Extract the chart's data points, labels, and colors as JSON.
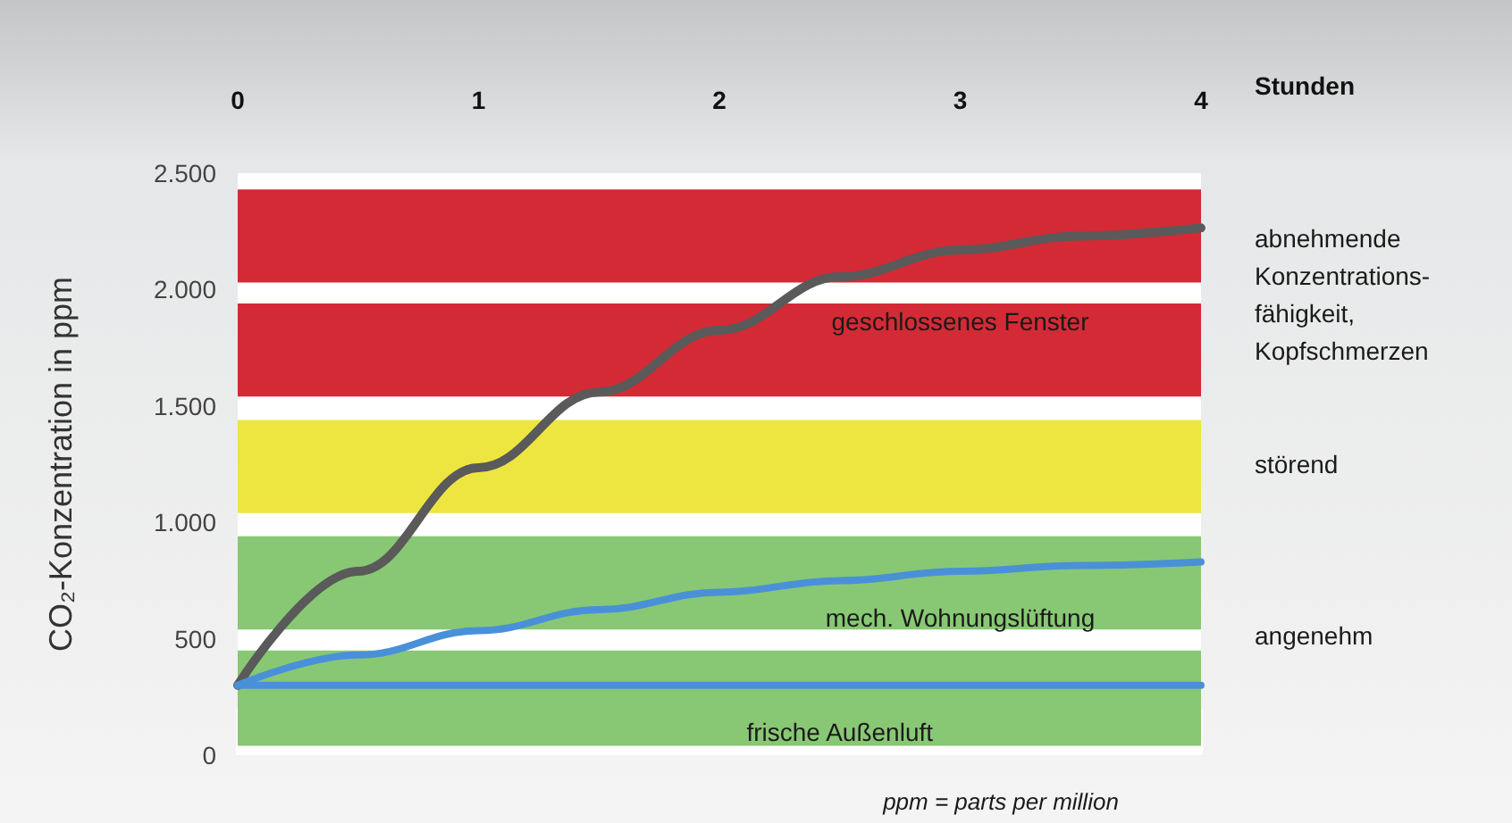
{
  "chart_data": {
    "type": "line",
    "xlabel": "Stunden",
    "ylabel": "CO₂-Konzentration in ppm",
    "x": [
      0,
      0.5,
      1,
      1.5,
      2,
      2.5,
      3,
      3.5,
      4
    ],
    "xlim": [
      0,
      4
    ],
    "xticks": [
      0,
      1,
      2,
      3,
      4
    ],
    "ylim": [
      0,
      2500
    ],
    "yticks": [
      0,
      500,
      {
        "value": 1000,
        "label": "1.000"
      },
      {
        "value": 1500,
        "label": "1.500"
      },
      {
        "value": 2000,
        "label": "2.000"
      },
      {
        "value": 2500,
        "label": "2.500"
      }
    ],
    "series": [
      {
        "name": "geschlossenes Fenster",
        "color": "#5a5a5a",
        "values": [
          300,
          790,
          1235,
          1560,
          1825,
          2055,
          2170,
          2230,
          2265
        ]
      },
      {
        "name": "mech. Wohnungslüftung",
        "color": "#4a90d8",
        "values": [
          300,
          430,
          535,
          625,
          700,
          750,
          790,
          815,
          830
        ]
      },
      {
        "name": "frische Außenluft",
        "color": "#4a90d8",
        "values": [
          300,
          300,
          300,
          300,
          300,
          300,
          300,
          300,
          300
        ]
      }
    ],
    "bands": [
      {
        "axis": "y",
        "from": 2030,
        "to": 2430,
        "color": "#d42a35"
      },
      {
        "axis": "y",
        "from": 1540,
        "to": 1940,
        "color": "#d42a35"
      },
      {
        "axis": "y",
        "from": 1040,
        "to": 1440,
        "color": "#ede540"
      },
      {
        "axis": "y",
        "from": 540,
        "to": 940,
        "color": "#88c874"
      },
      {
        "axis": "y",
        "from": 40,
        "to": 450,
        "color": "#88c874"
      }
    ],
    "annotations": [
      "abnehmende\nKonzentrations-\nfähigkeit,\nKopfschmerzen",
      "störend",
      "angenehm",
      "ppm = parts per million"
    ],
    "grid": false,
    "legend": false,
    "marker": "none",
    "line_style": "solid"
  }
}
